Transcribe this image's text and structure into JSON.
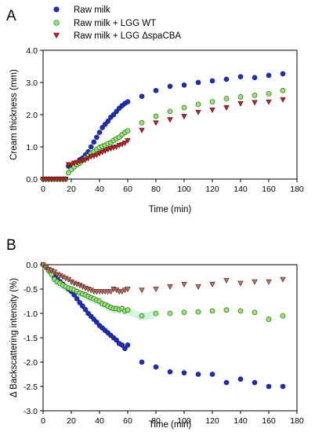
{
  "figure": {
    "panel_a_letter": "A",
    "panel_b_letter": "B"
  },
  "legend": {
    "entries": [
      "Raw milk",
      "Raw milk + LGG WT",
      "Raw milk + LGG ΔspaCBA"
    ]
  },
  "colors": {
    "raw_milk": "#1f2fb0",
    "wt_fill": "#9fe07a",
    "wt_stroke": "#2e7d1f",
    "dspa_fill": "#b0282e",
    "dspa_fill_b": "#b07a6a",
    "band_b": "#c8f2d8"
  },
  "chart_data": [
    {
      "panel": "A",
      "type": "scatter",
      "xlabel": "Time (min)",
      "ylabel": "Cream thickness (mm)",
      "xlim": [
        0,
        180
      ],
      "ylim": [
        0,
        4
      ],
      "xticks": [
        "0",
        "20",
        "40",
        "60",
        "80",
        "100",
        "120",
        "140",
        "160",
        "180"
      ],
      "yticks": [
        "0.0",
        "1.0",
        "2.0",
        "3.0",
        "4.0"
      ],
      "grid": false,
      "legend_position": "top-left, outside above plot",
      "series": [
        {
          "name": "Raw milk",
          "marker": "circle",
          "x": [
            0,
            2,
            4,
            6,
            8,
            10,
            12,
            14,
            16,
            18,
            20,
            22,
            24,
            26,
            28,
            30,
            32,
            34,
            36,
            38,
            40,
            42,
            44,
            46,
            48,
            50,
            52,
            54,
            56,
            58,
            60,
            70,
            80,
            90,
            100,
            110,
            120,
            130,
            140,
            150,
            160,
            170
          ],
          "y": [
            0,
            0,
            0,
            0,
            0,
            0,
            0,
            0,
            0,
            0.4,
            0.35,
            0.45,
            0.5,
            0.6,
            0.65,
            0.75,
            0.85,
            1.0,
            1.15,
            1.3,
            1.45,
            1.6,
            1.7,
            1.8,
            1.92,
            2.0,
            2.1,
            2.2,
            2.28,
            2.35,
            2.4,
            2.57,
            2.75,
            2.88,
            2.92,
            3.0,
            3.05,
            3.1,
            3.18,
            3.15,
            3.22,
            3.27
          ]
        },
        {
          "name": "Raw milk + LGG WT",
          "marker": "circle",
          "x": [
            0,
            2,
            4,
            6,
            8,
            10,
            12,
            14,
            16,
            18,
            20,
            22,
            24,
            26,
            28,
            30,
            32,
            34,
            36,
            38,
            40,
            42,
            44,
            46,
            48,
            50,
            52,
            54,
            56,
            58,
            60,
            70,
            80,
            90,
            100,
            110,
            120,
            130,
            140,
            150,
            160,
            170
          ],
          "y": [
            0,
            0,
            0,
            0,
            0,
            0,
            0,
            0,
            0,
            0.2,
            0.3,
            0.38,
            0.45,
            0.5,
            0.58,
            0.65,
            0.72,
            0.8,
            0.85,
            0.92,
            0.98,
            1.02,
            1.05,
            1.1,
            1.13,
            1.2,
            1.25,
            1.3,
            1.38,
            1.45,
            1.5,
            1.75,
            1.95,
            2.1,
            2.22,
            2.32,
            2.4,
            2.5,
            2.55,
            2.6,
            2.65,
            2.75
          ]
        },
        {
          "name": "Raw milk + LGG ΔspaCBA",
          "marker": "triangle-down",
          "x": [
            0,
            2,
            4,
            6,
            8,
            10,
            12,
            14,
            16,
            18,
            20,
            22,
            24,
            26,
            28,
            30,
            32,
            34,
            36,
            38,
            40,
            42,
            44,
            46,
            48,
            50,
            52,
            54,
            56,
            58,
            60,
            70,
            80,
            90,
            100,
            110,
            120,
            130,
            140,
            150,
            160,
            170
          ],
          "y": [
            0,
            0,
            0,
            0,
            0,
            0,
            0,
            0,
            0,
            0.45,
            0.45,
            0.5,
            0.52,
            0.55,
            0.58,
            0.6,
            0.65,
            0.7,
            0.72,
            0.75,
            0.8,
            0.84,
            0.88,
            0.92,
            0.95,
            0.98,
            1.0,
            1.05,
            1.08,
            1.12,
            1.2,
            1.52,
            1.75,
            1.85,
            1.95,
            2.08,
            2.15,
            2.22,
            2.35,
            2.38,
            2.4,
            2.47
          ]
        }
      ]
    },
    {
      "panel": "B",
      "type": "scatter",
      "xlabel": "Time (min)",
      "ylabel": "Δ Backscattering intensity (%)",
      "xlim": [
        0,
        180
      ],
      "ylim": [
        -3,
        0
      ],
      "xticks": [
        "0",
        "20",
        "40",
        "60",
        "80",
        "100",
        "120",
        "140",
        "160",
        "180"
      ],
      "yticks": [
        "0.0",
        "-0.5",
        "-1.0",
        "-1.5",
        "-2.0",
        "-2.5",
        "-3.0"
      ],
      "grid": false,
      "series": [
        {
          "name": "Raw milk",
          "marker": "circle",
          "x": [
            0,
            2,
            4,
            6,
            8,
            10,
            12,
            14,
            16,
            18,
            20,
            22,
            24,
            26,
            28,
            30,
            32,
            34,
            36,
            38,
            40,
            42,
            44,
            46,
            48,
            50,
            52,
            54,
            56,
            58,
            60,
            70,
            80,
            90,
            100,
            110,
            120,
            130,
            140,
            150,
            160,
            170
          ],
          "y": [
            0,
            -0.05,
            -0.1,
            -0.18,
            -0.25,
            -0.3,
            -0.35,
            -0.4,
            -0.45,
            -0.5,
            -0.55,
            -0.62,
            -0.7,
            -0.78,
            -0.85,
            -0.92,
            -1.0,
            -1.06,
            -1.12,
            -1.18,
            -1.25,
            -1.3,
            -1.35,
            -1.4,
            -1.45,
            -1.5,
            -1.55,
            -1.62,
            -1.65,
            -1.72,
            -1.65,
            -2.0,
            -2.1,
            -2.2,
            -2.22,
            -2.25,
            -2.25,
            -2.42,
            -2.35,
            -2.42,
            -2.5,
            -2.5
          ]
        },
        {
          "name": "Raw milk + LGG WT",
          "marker": "circle",
          "x": [
            0,
            2,
            4,
            6,
            8,
            10,
            12,
            14,
            16,
            18,
            20,
            22,
            24,
            26,
            28,
            30,
            32,
            34,
            36,
            38,
            40,
            42,
            44,
            46,
            48,
            50,
            52,
            54,
            56,
            58,
            60,
            70,
            80,
            90,
            100,
            110,
            120,
            130,
            140,
            150,
            160,
            170
          ],
          "y": [
            0,
            -0.05,
            -0.12,
            -0.2,
            -0.3,
            -0.35,
            -0.38,
            -0.42,
            -0.45,
            -0.48,
            -0.5,
            -0.52,
            -0.55,
            -0.58,
            -0.6,
            -0.62,
            -0.65,
            -0.68,
            -0.7,
            -0.73,
            -0.75,
            -0.8,
            -0.82,
            -0.85,
            -0.88,
            -0.9,
            -0.9,
            -0.92,
            -0.9,
            -0.95,
            -0.93,
            -1.05,
            -1.0,
            -1.0,
            -0.98,
            -0.97,
            -0.95,
            -0.93,
            -0.95,
            -0.98,
            -1.12,
            -1.05
          ]
        },
        {
          "name": "Raw milk + LGG ΔspaCBA",
          "marker": "triangle-down",
          "x": [
            0,
            2,
            4,
            6,
            8,
            10,
            12,
            14,
            16,
            18,
            20,
            22,
            24,
            26,
            28,
            30,
            32,
            34,
            36,
            38,
            40,
            42,
            44,
            46,
            48,
            50,
            52,
            54,
            56,
            58,
            60,
            70,
            80,
            90,
            100,
            110,
            120,
            130,
            140,
            150,
            160,
            170
          ],
          "y": [
            0,
            -0.05,
            -0.1,
            -0.12,
            -0.15,
            -0.2,
            -0.22,
            -0.25,
            -0.28,
            -0.3,
            -0.35,
            -0.38,
            -0.4,
            -0.42,
            -0.45,
            -0.48,
            -0.5,
            -0.52,
            -0.55,
            -0.55,
            -0.55,
            -0.55,
            -0.55,
            -0.55,
            -0.55,
            -0.5,
            -0.52,
            -0.55,
            -0.55,
            -0.52,
            -0.5,
            -0.52,
            -0.5,
            -0.45,
            -0.4,
            -0.45,
            -0.4,
            -0.32,
            -0.38,
            -0.35,
            -0.35,
            -0.3
          ]
        }
      ]
    }
  ]
}
